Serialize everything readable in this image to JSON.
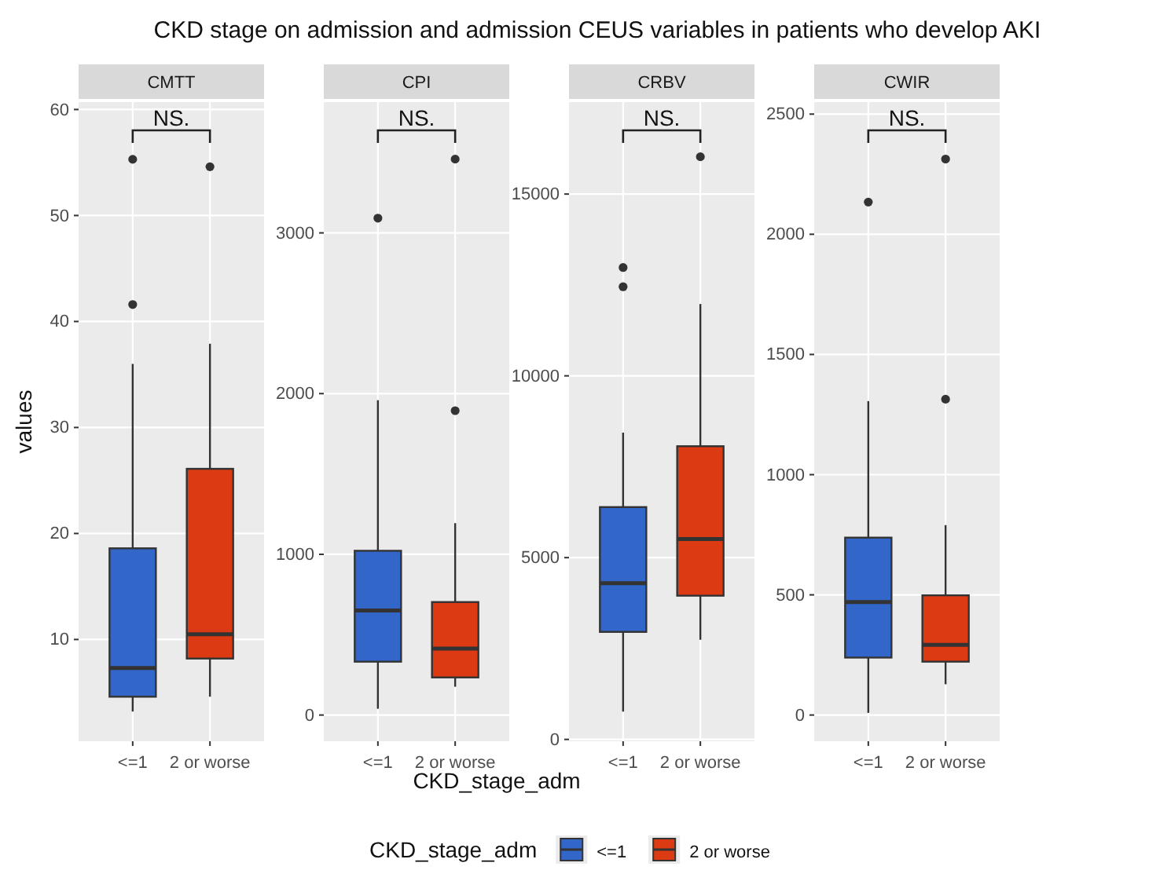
{
  "chart_data": [
    {
      "type": "box",
      "title": "CKD stage on admission and admission CEUS variables in patients who develop AKI",
      "subtitle": "CMTT",
      "ylabel": "values",
      "legend_title": "CKD_stage_adm",
      "legend": "bottom",
      "grid": true,
      "annotations": [
        "NS."
      ],
      "categories": [
        "<=1",
        "2 or worse"
      ],
      "ylim": [
        0.4,
        60.7
      ],
      "yticks": [
        10,
        20,
        30,
        40,
        50,
        60
      ],
      "series": [
        {
          "name": "<=1",
          "color": "#3266c9",
          "boxes": [
            {
              "low": 3.2,
              "q1": 4.6,
              "median": 7.3,
              "q3": 18.6,
              "high": 36,
              "outliers": [
                41.6,
                55.3
              ]
            },
            null
          ]
        },
        {
          "name": "2 or worse",
          "color": "#dc3a12",
          "boxes": [
            null,
            {
              "low": 4.6,
              "q1": 8.2,
              "median": 10.5,
              "q3": 26.1,
              "high": 37.9,
              "outliers": [
                54.6
              ]
            }
          ]
        }
      ]
    },
    {
      "type": "box",
      "subtitle": "CPI",
      "xlabel": "CKD_stage_adm",
      "grid": true,
      "annotations": [
        "NS."
      ],
      "categories": [
        "<=1",
        "2 or worse"
      ],
      "ylim": [
        -163,
        3814
      ],
      "yticks": [
        0,
        1000,
        2000,
        3000
      ],
      "series": [
        {
          "color": "#3266c9",
          "boxes": [
            {
              "low": 39,
              "q1": 332,
              "median": 651,
              "q3": 1022,
              "high": 1959,
              "outliers": [
                3092
              ]
            },
            null
          ]
        },
        {
          "color": "#dc3a12",
          "boxes": [
            null,
            {
              "low": 176,
              "q1": 234,
              "median": 413,
              "q3": 703,
              "high": 1194,
              "outliers": [
                1894,
                3459
              ]
            }
          ]
        }
      ]
    },
    {
      "type": "box",
      "subtitle": "CRBV",
      "grid": true,
      "annotations": [
        "NS."
      ],
      "categories": [
        "<=1",
        "2 or worse"
      ],
      "ylim": [
        -50,
        17530
      ],
      "yticks": [
        0,
        5000,
        10000,
        15000
      ],
      "series": [
        {
          "color": "#3266c9",
          "boxes": [
            {
              "low": 765,
              "q1": 2957,
              "median": 4298,
              "q3": 6390,
              "high": 8438,
              "outliers": [
                12450,
                12980
              ]
            },
            null
          ]
        },
        {
          "color": "#dc3a12",
          "boxes": [
            null,
            {
              "low": 2741,
              "q1": 3953,
              "median": 5511,
              "q3": 8064,
              "high": 11976,
              "outliers": [
                16026
              ]
            }
          ]
        }
      ]
    },
    {
      "type": "box",
      "subtitle": "CWIR",
      "grid": true,
      "annotations": [
        "NS."
      ],
      "categories": [
        "<=1",
        "2 or worse"
      ],
      "ylim": [
        -109,
        2550
      ],
      "yticks": [
        0,
        500,
        1000,
        1500,
        2000,
        2500
      ],
      "series": [
        {
          "color": "#3266c9",
          "boxes": [
            {
              "low": 9,
              "q1": 239,
              "median": 470,
              "q3": 738,
              "high": 1306,
              "outliers": [
                2134
              ]
            },
            null
          ]
        },
        {
          "color": "#dc3a12",
          "boxes": [
            null,
            {
              "low": 128,
              "q1": 222,
              "median": 292,
              "q3": 498,
              "high": 790,
              "outliers": [
                1314,
                2313
              ]
            }
          ]
        }
      ]
    }
  ]
}
